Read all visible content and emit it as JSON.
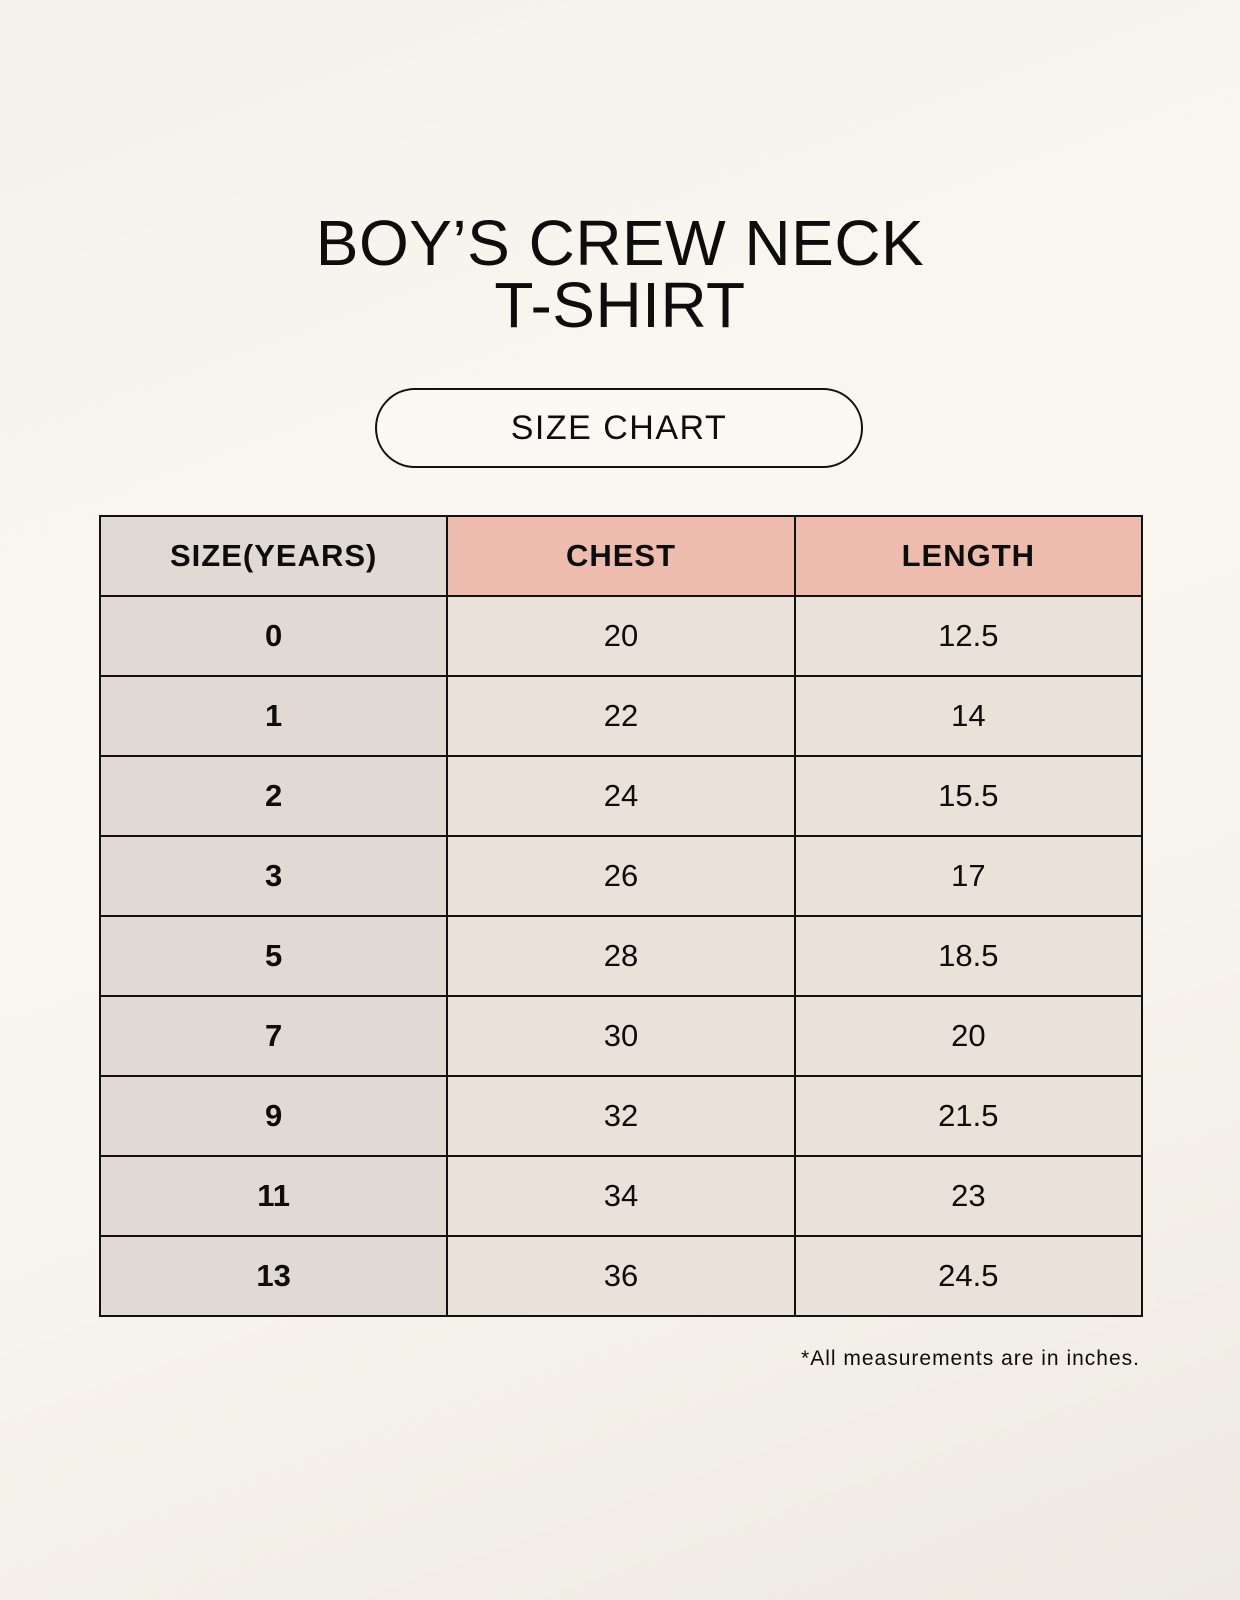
{
  "title": {
    "line1": "BOY’S CREW NECK",
    "line2": "T-SHIRT"
  },
  "badge": "SIZE CHART",
  "table": {
    "headers": [
      "SIZE(YEARS)",
      "CHEST",
      "LENGTH"
    ],
    "rows": [
      [
        "0",
        "20",
        "12.5"
      ],
      [
        "1",
        "22",
        "14"
      ],
      [
        "2",
        "24",
        "15.5"
      ],
      [
        "3",
        "26",
        "17"
      ],
      [
        "5",
        "28",
        "18.5"
      ],
      [
        "7",
        "30",
        "20"
      ],
      [
        "9",
        "32",
        "21.5"
      ],
      [
        "11",
        "34",
        "23"
      ],
      [
        "13",
        "36",
        "24.5"
      ]
    ]
  },
  "footnote": "*All measurements are in inches.",
  "colors": {
    "size_column": "#e1d9d4",
    "header_accent": "#edbcae",
    "cell": "#eae2d8"
  }
}
